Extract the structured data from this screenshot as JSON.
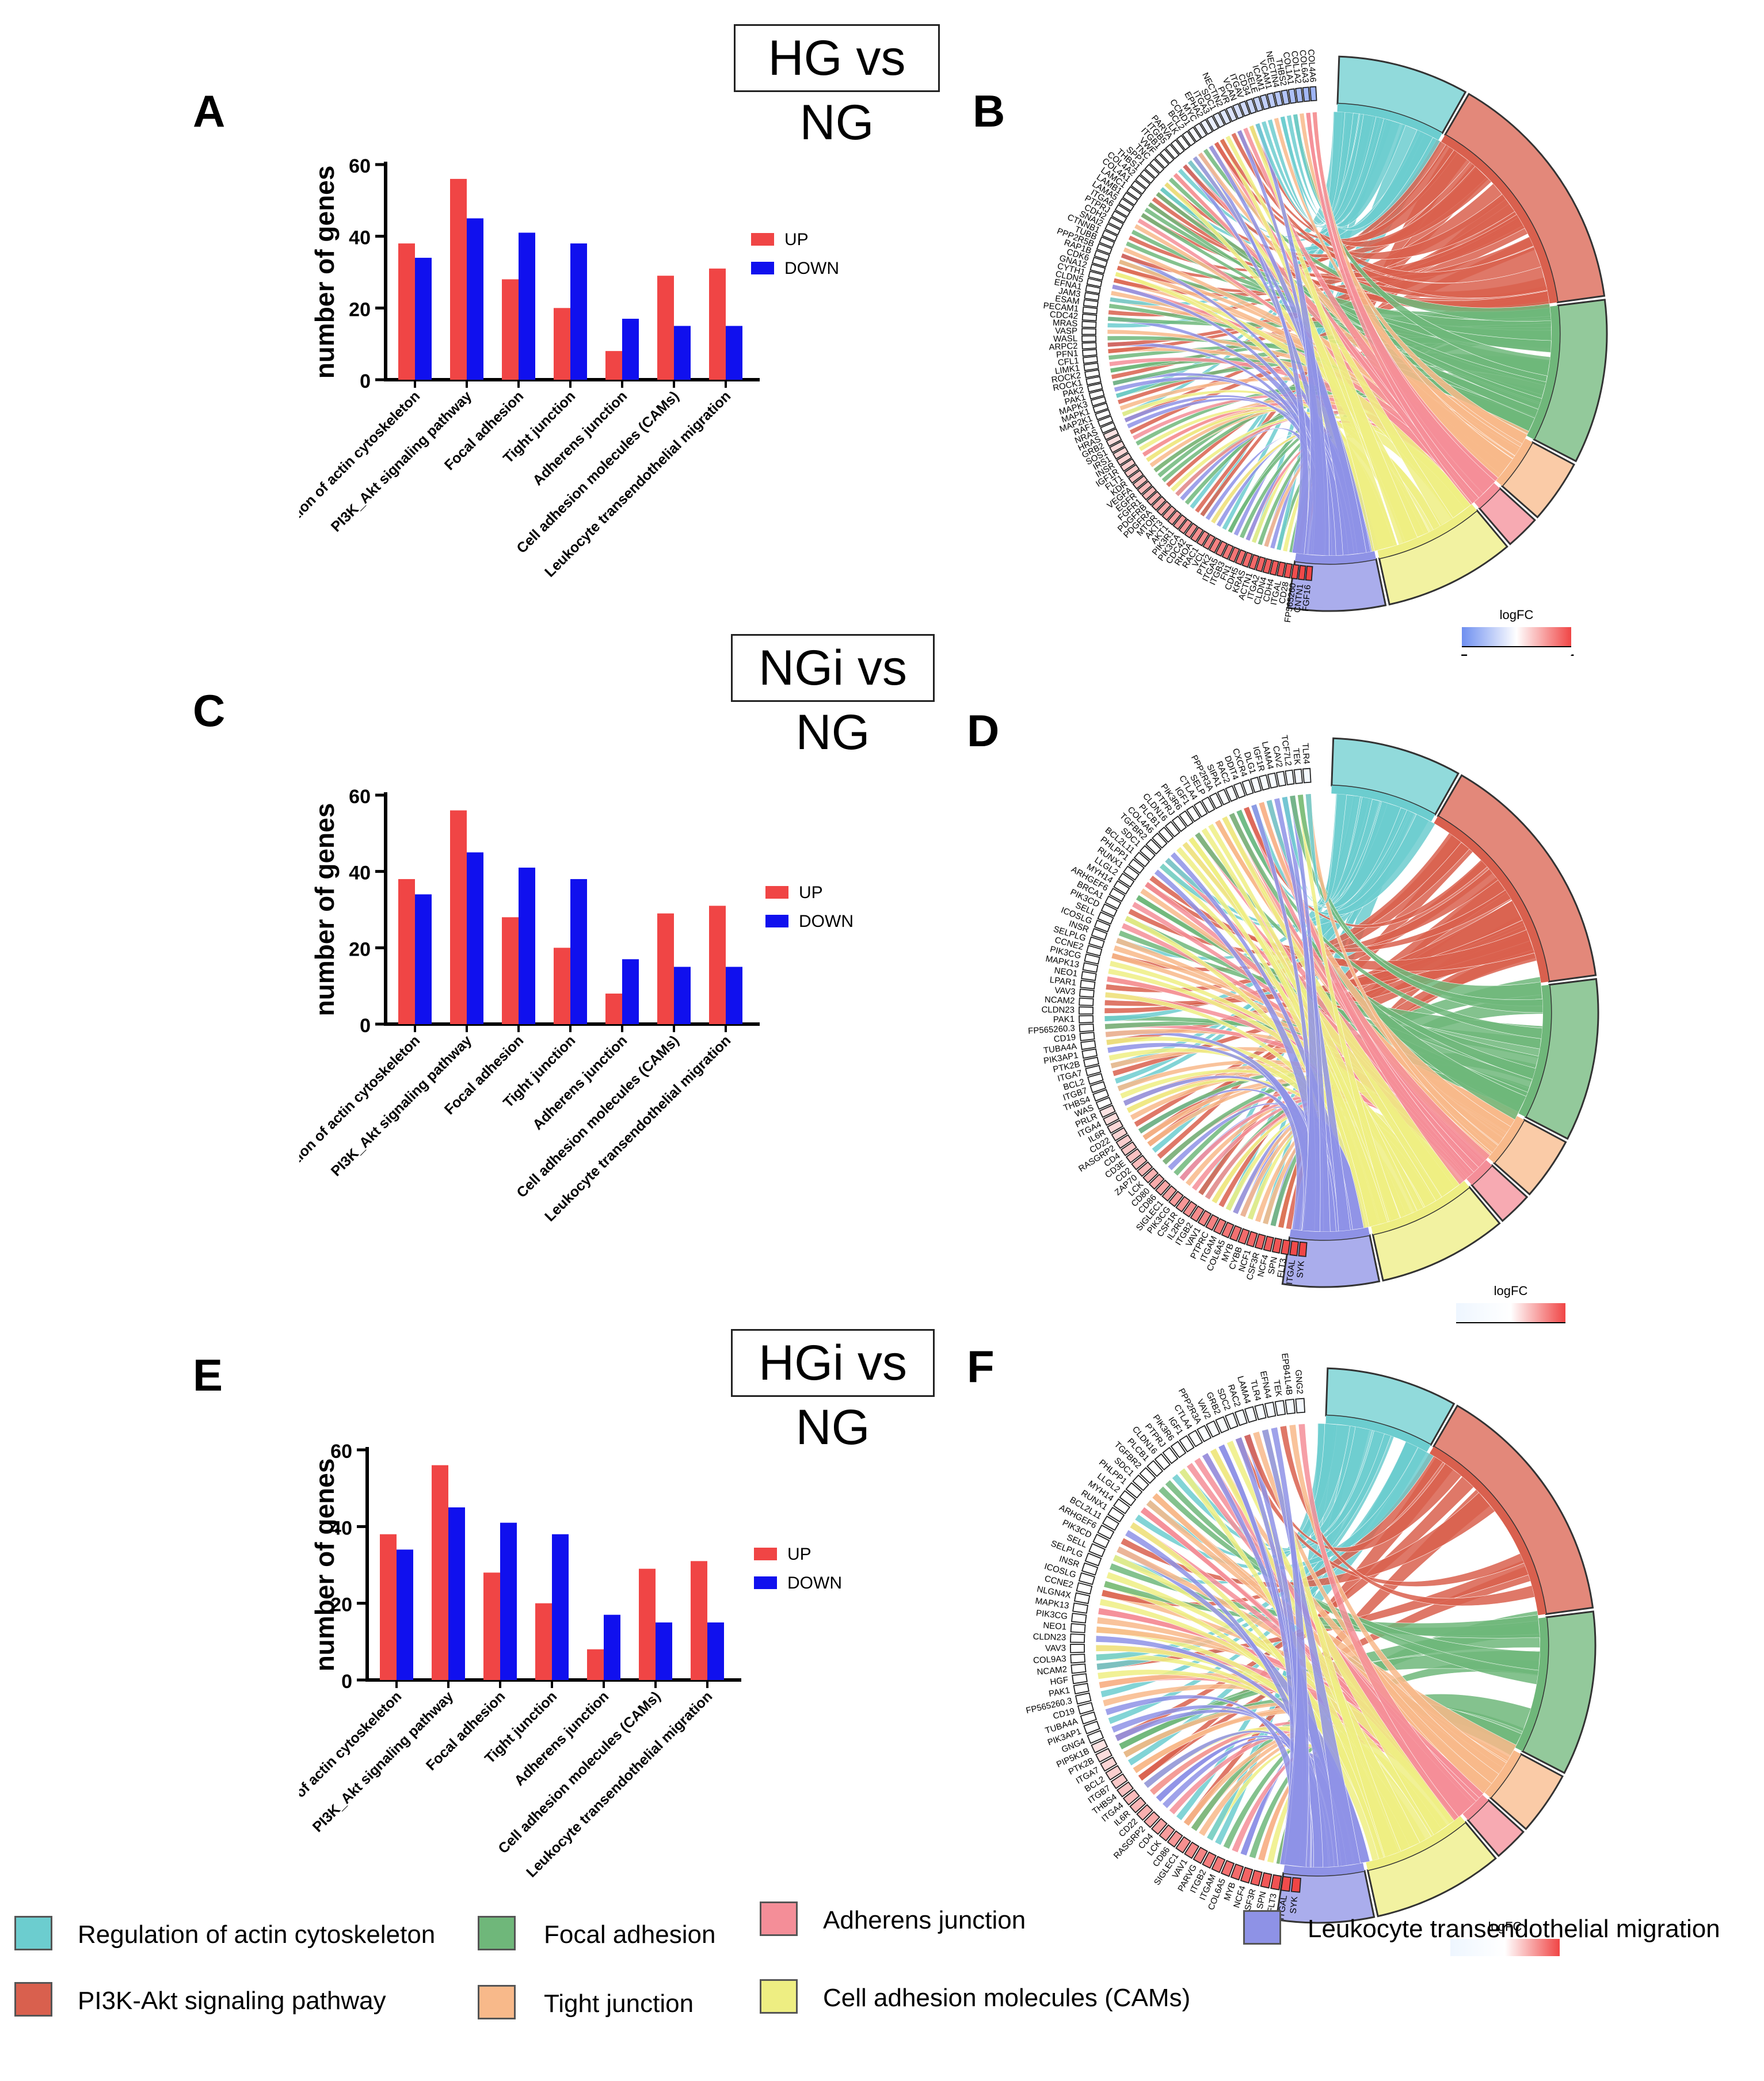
{
  "colors": {
    "up": "#f04545",
    "down": "#1010ee",
    "regulation_of_actin": "#6ccdcf",
    "pi3k_akt": "#d9604e",
    "focal_adhesion": "#6fb77a",
    "tight_junction": "#f8b98a",
    "adherens_junction": "#f48e98",
    "cams": "#eeee82",
    "leukocyte": "#8e92e6"
  },
  "titles": [
    "HG vs NG",
    "NGi vs NG",
    "HGi vs NG"
  ],
  "panel_letters": [
    "A",
    "B",
    "C",
    "D",
    "E",
    "F"
  ],
  "chart_data": [
    {
      "type": "bar",
      "panel": "A",
      "ylabel": "number of genes",
      "categories": [
        "Regulation of actin cytoskeleton",
        "PI3K_Akt signaling pathway",
        "Focal adhesion",
        "Tight junction",
        "Adherens junction",
        "Cell adhesion molecules (CAMs)",
        "Leukocyte transendothelial migration"
      ],
      "series": [
        {
          "name": "UP",
          "values": [
            38,
            56,
            28,
            20,
            8,
            29,
            31
          ]
        },
        {
          "name": "DOWN",
          "values": [
            34,
            45,
            41,
            38,
            17,
            15,
            15
          ]
        }
      ],
      "ylim": [
        0,
        60
      ],
      "yticks": [
        "0",
        "20",
        "40",
        "60"
      ],
      "legend": "right"
    },
    {
      "type": "bar",
      "panel": "C",
      "ylabel": "number of genes",
      "categories": [
        "Regulation of actin cytoskeleton",
        "PI3K_Akt signaling pathway",
        "Focal adhesion",
        "Tight junction",
        "Adherens junction",
        "Cell adhesion molecules (CAMs)",
        "Leukocyte transendothelial migration"
      ],
      "series": [
        {
          "name": "UP",
          "values": [
            38,
            56,
            28,
            20,
            8,
            29,
            31
          ]
        },
        {
          "name": "DOWN",
          "values": [
            34,
            45,
            41,
            38,
            17,
            15,
            15
          ]
        }
      ],
      "ylim": [
        0,
        60
      ],
      "yticks": [
        "0",
        "20",
        "40",
        "60"
      ],
      "legend": "right"
    },
    {
      "type": "bar",
      "panel": "E",
      "ylabel": "number of genes",
      "categories": [
        "Regulation of actin cytoskeleton",
        "PI3K_Akt signaling pathway",
        "Focal adhesion",
        "Tight junction",
        "Adherens junction",
        "Cell adhesion molecules (CAMs)",
        "Leukocyte transendothelial migration"
      ],
      "series": [
        {
          "name": "UP",
          "values": [
            38,
            56,
            28,
            20,
            8,
            29,
            31
          ]
        },
        {
          "name": "DOWN",
          "values": [
            34,
            45,
            41,
            38,
            17,
            15,
            15
          ]
        }
      ],
      "ylim": [
        0,
        60
      ],
      "yticks": [
        "0",
        "20",
        "40",
        "60"
      ],
      "legend": "right"
    },
    {
      "type": "chord",
      "panel": "B",
      "colorbar_title": "logFC",
      "colorbar_range": [
        "-5",
        "4"
      ],
      "colorbar_colors": [
        "#6e8ff0",
        "#ffffff",
        "#f04545"
      ],
      "genes": [
        "FGF16",
        "CNTN1",
        "FP565260",
        "CD28",
        "ITGAL",
        "CDH4",
        "CLDN4",
        "ITGA2",
        "ACTN1",
        "KRAS",
        "CDH5",
        "FN1",
        "ITGB3",
        "ITGA5",
        "PTK2",
        "VCL",
        "RAC1",
        "RHOA",
        "CDC42",
        "PIK3CA",
        "PIK3R1",
        "AKT1",
        "AKT3",
        "MTOR",
        "PDGFRA",
        "PDGFRB",
        "FGFR1",
        "EGFR",
        "VEGFA",
        "KDR",
        "FLT1",
        "IGF1R",
        "INSR",
        "IRS1",
        "SOS1",
        "GRB2",
        "HRAS",
        "NRAS",
        "RAF1",
        "MAP2K1",
        "MAPK1",
        "MAPK3",
        "PAK1",
        "PAK2",
        "ROCK1",
        "ROCK2",
        "LIMK1",
        "CFL1",
        "PFN1",
        "ARPC2",
        "WASL",
        "VASP",
        "MRAS",
        "CDC42",
        "PECAM1",
        "ESAM",
        "JAM3",
        "EFNA1",
        "CLDN5",
        "CYTH1",
        "GNA12",
        "CDK6",
        "RAP1B",
        "PPP2R5B",
        "TUBB",
        "CTNNB1",
        "SNAI2",
        "CDH2",
        "PTPRJ",
        "ITGA6",
        "LAMA5",
        "LAMB1",
        "LAMC1",
        "COL4A1",
        "COL4A2",
        "THBS1",
        "SPP1",
        "TNC",
        "VWF",
        "ITGB1",
        "ITGB5",
        "PARVA",
        "ILK",
        "BCL2",
        "CCND1",
        "MYC",
        "EPHA2",
        "ITGA3",
        "SDC1",
        "NECTIN2",
        "PVR",
        "VCAN",
        "ITGAV",
        "CD34",
        "SELE",
        "ICAM1",
        "VCAM1",
        "NECTIN4",
        "THBS2",
        "COL1A1",
        "COL1A2",
        "COL6A3",
        "COL4A6"
      ]
    },
    {
      "type": "chord",
      "panel": "D",
      "colorbar_title": "logFC",
      "colorbar_range": [
        "-1",
        "6"
      ],
      "colorbar_colors": [
        "#eef6ff",
        "#ffffff",
        "#f04545"
      ],
      "genes": [
        "SYK",
        "ITGAL",
        "FLT3",
        "SPN",
        "NCF4",
        "CSF3R",
        "NCF1",
        "CYBB",
        "MYB",
        "COL6A5",
        "ITGAM",
        "PTPRC",
        "VAV1",
        "ITGB2",
        "IL2RG",
        "CSF1R",
        "PIK3CG",
        "SIGLEC1",
        "CD86",
        "CD80",
        "LCK",
        "ZAP70",
        "CD2",
        "CD3E",
        "CD4",
        "RASGRP2",
        "CD22",
        "IL6R",
        "ITGA4",
        "PRLR",
        "WAS",
        "THBS4",
        "ITGB7",
        "BCL2",
        "ITGA7",
        "PTK2B",
        "PIK3AP1",
        "TUBA4A",
        "CD19",
        "FP565260.3",
        "PAK1",
        "CLDN23",
        "NCAM2",
        "VAV3",
        "LPAR1",
        "NEO1",
        "MAPK13",
        "PIK3CG",
        "CCNE2",
        "SELPLG",
        "INSR",
        "ICOSLG",
        "SELL",
        "PIK3CD",
        "BRCA1",
        "ARHGEF6",
        "MYH14",
        "LLGL2",
        "RUNX1",
        "PHLPP1",
        "BCL2L11",
        "SDC1",
        "TGFBR2",
        "COL4A6",
        "PLCB1",
        "CLDN16",
        "PTPRJ",
        "PIK3R6",
        "IGF1",
        "CTLA4",
        "SELP",
        "PPP2R3A",
        "SIPA1",
        "RAC2",
        "DDIT4",
        "CXCR4",
        "DLG1",
        "IGF1R",
        "LAMA4",
        "CAV2",
        "TCF7L2",
        "TEK",
        "TLR4"
      ]
    },
    {
      "type": "chord",
      "panel": "F",
      "colorbar_title": "logFC",
      "colorbar_range": [
        "-1",
        "6"
      ],
      "colorbar_colors": [
        "#eef6ff",
        "#ffffff",
        "#f04545"
      ],
      "genes": [
        "SYK",
        "ITGAL",
        "FLT3",
        "SPN",
        "CSF3R",
        "NCF4",
        "MYB",
        "COL6A5",
        "ITGAM",
        "ITGB2",
        "PARVG",
        "VAV1",
        "SIGLEC1",
        "CD86",
        "LCK",
        "CD4",
        "RASGRP2",
        "CD22",
        "IL6R",
        "ITGA4",
        "THBS4",
        "ITGB7",
        "BCL2",
        "ITGA7",
        "PTK2B",
        "PIP5K1B",
        "GNG4",
        "PIK3AP1",
        "TUBA4A",
        "CD19",
        "FP565260.3",
        "PAK1",
        "HGF",
        "NCAM2",
        "COL9A3",
        "VAV3",
        "CLDN23",
        "NEO1",
        "PIK3CG",
        "MAPK13",
        "NLGN4X",
        "CCNE2",
        "ICOSLG",
        "INSR",
        "SELPLG",
        "SELL",
        "PIK3CD",
        "ARHGEF6",
        "BCL2L11",
        "RUNX1",
        "MYH14",
        "LLGL2",
        "PHLPP1",
        "SDC1",
        "TGFBR2",
        "PLCB1",
        "CLDN16",
        "PTPRJ",
        "PIK3R6",
        "IGF1",
        "CTLA4",
        "PPP2R3A",
        "VAV2",
        "GRB2",
        "SDC2",
        "RAC2",
        "LAMA4",
        "TLR4",
        "EFNA4",
        "TEK",
        "EPB41L4B",
        "GNG2"
      ]
    }
  ],
  "pathway_legend": [
    {
      "label": "Regulation of actin cytoskeleton",
      "color_key": "regulation_of_actin"
    },
    {
      "label": "PI3K-Akt signaling pathway",
      "color_key": "pi3k_akt"
    },
    {
      "label": "Focal adhesion",
      "color_key": "focal_adhesion"
    },
    {
      "label": "Tight junction",
      "color_key": "tight_junction"
    },
    {
      "label": "Adherens junction",
      "color_key": "adherens_junction"
    },
    {
      "label": "Cell adhesion molecules (CAMs)",
      "color_key": "cams"
    },
    {
      "label": "Leukocyte transendothelial migration",
      "color_key": "leukocyte"
    }
  ]
}
